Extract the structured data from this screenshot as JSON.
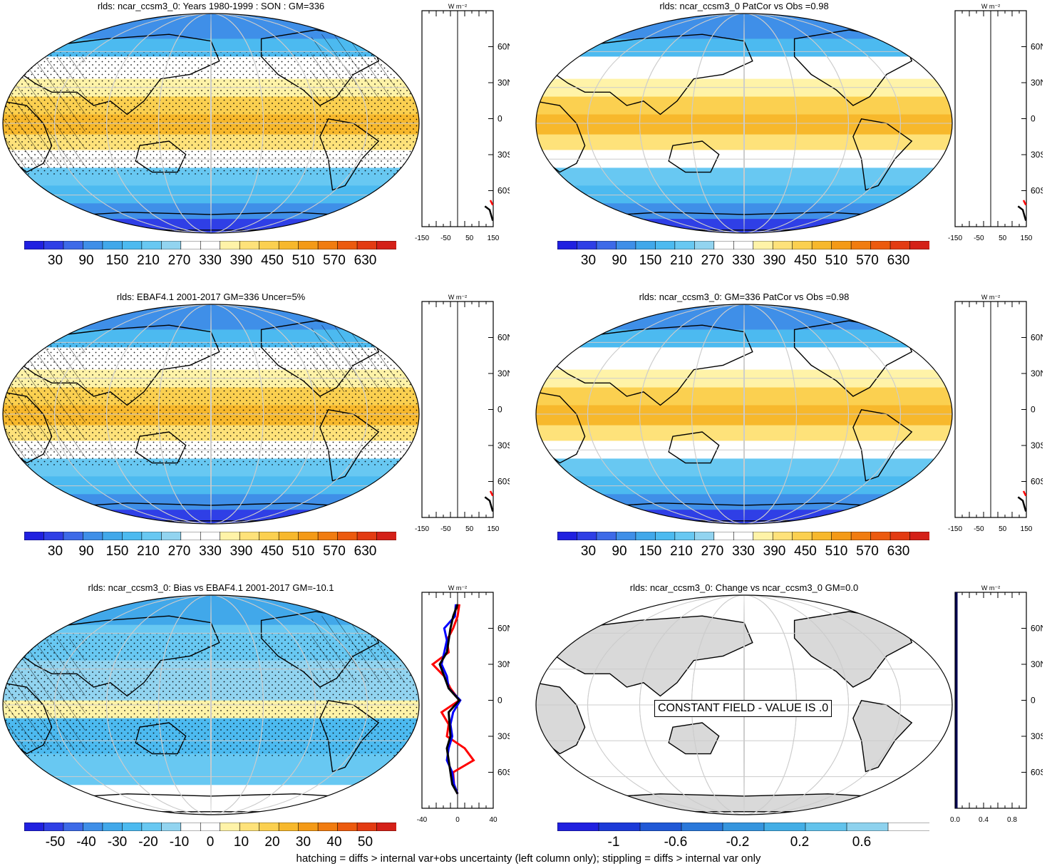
{
  "footer": "hatching = diffs > internal var+obs uncertainty (left column only); stippling = diffs > internal var only",
  "units_label": "W m⁻²",
  "lat_labels": [
    "60N",
    "30N",
    "0",
    "30S",
    "60S"
  ],
  "colors": {
    "abs_scale": [
      "#2020e0",
      "#2f3fe6",
      "#3d6ae8",
      "#3f8fe8",
      "#41a8ea",
      "#4cbaf0",
      "#68c8f2",
      "#92d4f0",
      "#ffffff",
      "#ffffff",
      "#fff3a8",
      "#fee27a",
      "#fbd050",
      "#f7b82c",
      "#f49a17",
      "#f17c10",
      "#ec5a0e",
      "#e33b12",
      "#d42018"
    ],
    "diff_scale": [
      "#2020e0",
      "#2f3fe6",
      "#3d6ae8",
      "#3f8fe8",
      "#41a8ea",
      "#4cbaf0",
      "#68c8f2",
      "#92d4f0",
      "#ffffff",
      "#ffffff",
      "#fff3a8",
      "#fee27a",
      "#fbd050",
      "#f7b82c",
      "#f49a17",
      "#f17c10",
      "#ec5a0e",
      "#e33b12",
      "#d42018"
    ],
    "change_scale": [
      "#2020e0",
      "#1c3ad8",
      "#2058d6",
      "#2a78da",
      "#3595de",
      "#43aee6",
      "#63c3ec",
      "#8ed2ee",
      "#ffffff"
    ]
  },
  "chart_data": [
    {
      "type": "heatmap",
      "title": "rlds: ncar_ccsm3_0: Years 1980-1999 : SON : GM=336",
      "colorbar_ticks": [
        "30",
        "90",
        "150",
        "210",
        "270",
        "330",
        "390",
        "450",
        "510",
        "570",
        "630"
      ],
      "zonal_axis_ticks": [
        "-150",
        "-50",
        "50",
        "150"
      ],
      "zonal_xlim": [
        -150,
        150
      ],
      "hatching": true,
      "stippling": true
    },
    {
      "type": "heatmap",
      "title": "rlds: ncar_ccsm3_0 PatCor vs Obs =0.98",
      "colorbar_ticks": [
        "30",
        "90",
        "150",
        "210",
        "270",
        "330",
        "390",
        "450",
        "510",
        "570",
        "630"
      ],
      "zonal_axis_ticks": [
        "-150",
        "-50",
        "50",
        "150"
      ],
      "zonal_xlim": [
        -150,
        150
      ],
      "hatching": false,
      "stippling": false
    },
    {
      "type": "heatmap",
      "title": "rlds: EBAF4.1 2001-2017 GM=336 Uncer=5%",
      "colorbar_ticks": [
        "30",
        "90",
        "150",
        "210",
        "270",
        "330",
        "390",
        "450",
        "510",
        "570",
        "630"
      ],
      "zonal_axis_ticks": [
        "-150",
        "-50",
        "50",
        "150"
      ],
      "zonal_xlim": [
        -150,
        150
      ],
      "hatching": true,
      "stippling": true
    },
    {
      "type": "heatmap",
      "title": "rlds: ncar_ccsm3_0: GM=336 PatCor vs Obs =0.98",
      "colorbar_ticks": [
        "30",
        "90",
        "150",
        "210",
        "270",
        "330",
        "390",
        "450",
        "510",
        "570",
        "630"
      ],
      "zonal_axis_ticks": [
        "-150",
        "-50",
        "50",
        "150"
      ],
      "zonal_xlim": [
        -150,
        150
      ],
      "hatching": false,
      "stippling": false
    },
    {
      "type": "heatmap",
      "title": "rlds: ncar_ccsm3_0: Bias vs EBAF4.1 2001-2017  GM=-10.1",
      "colorbar_ticks": [
        "-50",
        "-40",
        "-30",
        "-20",
        "-10",
        "0",
        "10",
        "20",
        "30",
        "40",
        "50"
      ],
      "zonal_axis_ticks": [
        "-40",
        "0",
        "40"
      ],
      "zonal_xlim": [
        -40,
        40
      ],
      "hatching": true,
      "stippling": true,
      "zonal_lat": [
        80,
        70,
        60,
        50,
        40,
        30,
        20,
        10,
        0,
        -10,
        -20,
        -30,
        -40,
        -50,
        -60,
        -70,
        -78
      ],
      "zonal_series": [
        {
          "color": "#ff0000",
          "values": [
            2,
            0,
            -5,
            -12,
            -10,
            -28,
            -15,
            -8,
            2,
            -18,
            -10,
            -12,
            8,
            18,
            -5,
            -4,
            0
          ]
        },
        {
          "color": "#0000ff",
          "values": [
            -2,
            -3,
            -15,
            -12,
            -15,
            -18,
            -12,
            -10,
            3,
            -5,
            -8,
            -6,
            -10,
            -12,
            -6,
            -4,
            0
          ]
        },
        {
          "color": "#000000",
          "values": [
            0,
            -5,
            -8,
            -10,
            -12,
            -20,
            -15,
            -10,
            2,
            -10,
            -9,
            -8,
            -12,
            -10,
            -8,
            -6,
            0
          ]
        }
      ]
    },
    {
      "type": "heatmap",
      "title": "rlds: ncar_ccsm3_0: Change vs ncar_ccsm3_0 GM=0.0",
      "colorbar_ticks": [
        "-1",
        "-0.6",
        "-0.2",
        "0.2",
        "0.6"
      ],
      "zonal_axis_ticks": [
        "0.0",
        "0.4",
        "0.8"
      ],
      "zonal_xlim": [
        0,
        1
      ],
      "constant_label": "CONSTANT FIELD - VALUE IS .0",
      "hatching": false,
      "stippling": false
    }
  ]
}
